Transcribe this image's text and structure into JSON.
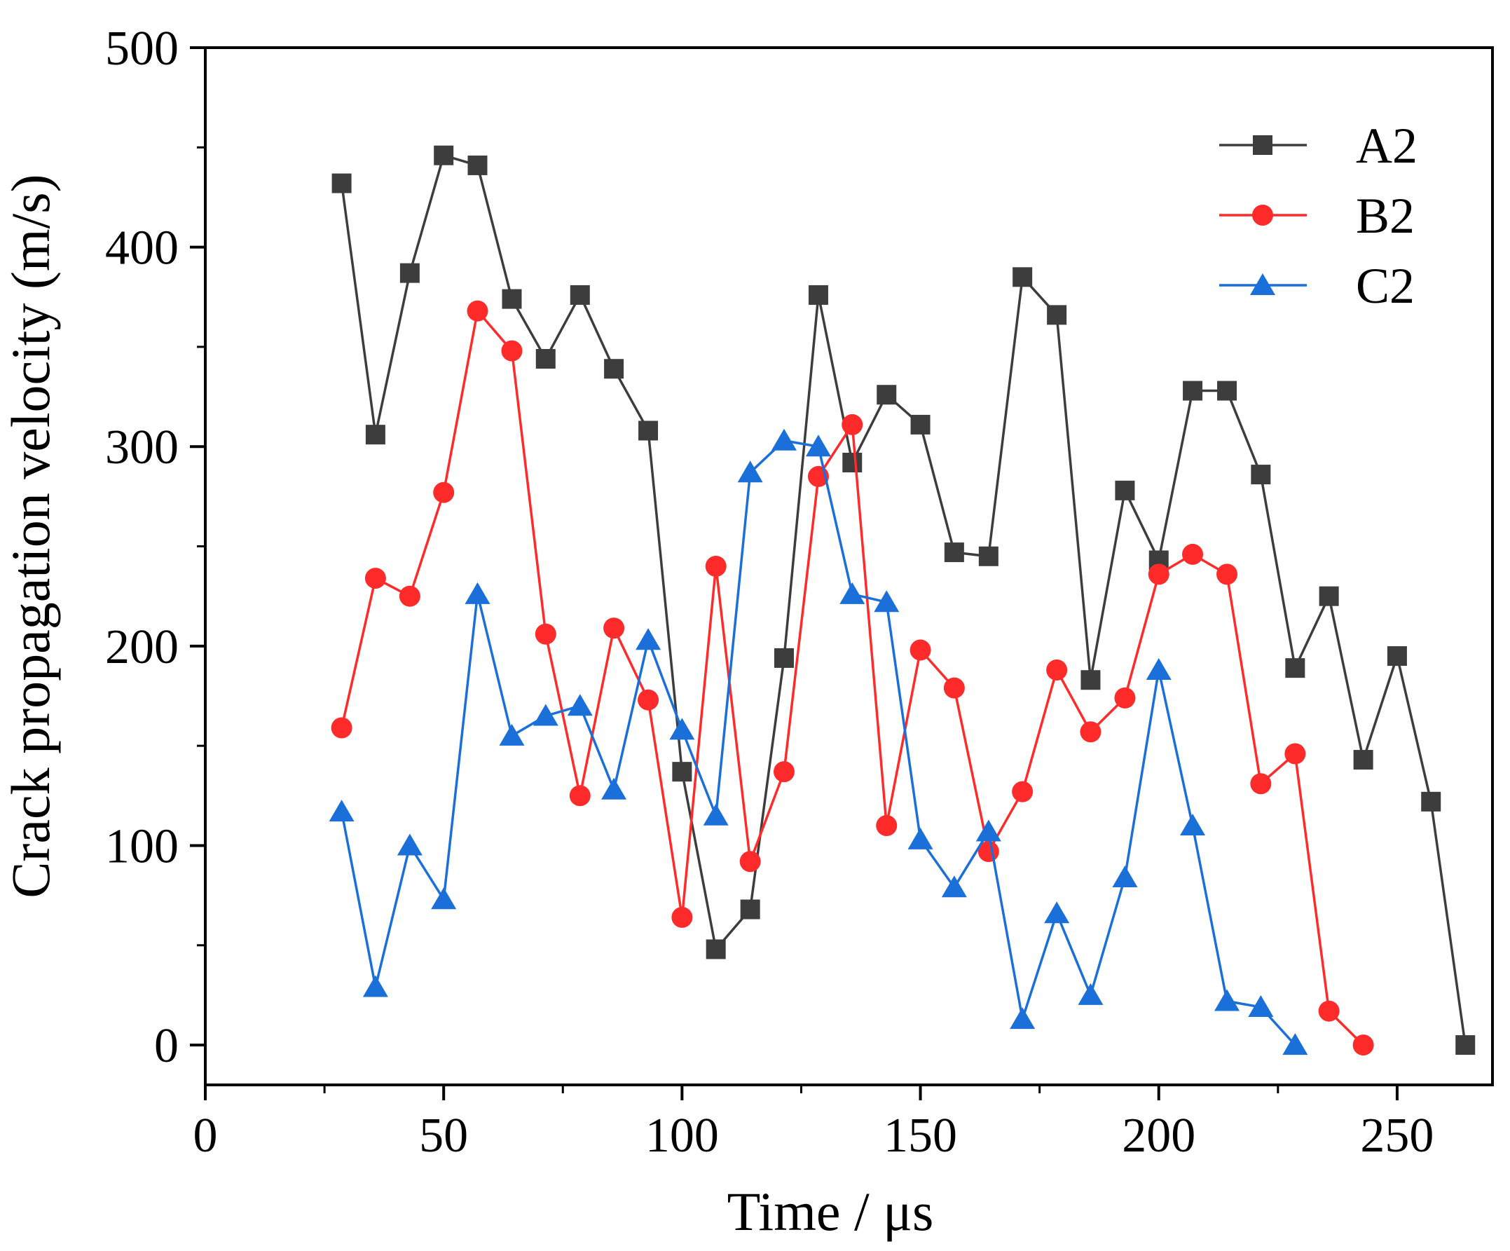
{
  "chart_data": {
    "type": "line",
    "xlabel": "Time / μs",
    "ylabel": "Crack propagation velocity (m/s)",
    "xlim": [
      0,
      270
    ],
    "ylim": [
      -20,
      500
    ],
    "xticks": [
      0,
      50,
      100,
      150,
      200,
      250
    ],
    "yticks": [
      0,
      100,
      200,
      300,
      400,
      500
    ],
    "x_minor_ticks": [
      25,
      75,
      125,
      175,
      225
    ],
    "grid": false,
    "legend_position": "top-right",
    "series": [
      {
        "name": "A2",
        "color": "#3d3d3d",
        "marker": "square",
        "x": [
          28.6,
          35.7,
          42.9,
          50.0,
          57.1,
          64.3,
          71.4,
          78.6,
          85.7,
          92.9,
          100.0,
          107.1,
          114.3,
          121.4,
          128.6,
          135.7,
          142.9,
          150.0,
          157.1,
          164.3,
          171.4,
          178.6,
          185.7,
          192.9,
          200.0,
          207.1,
          214.3,
          221.4,
          228.6,
          235.7,
          242.9,
          250.0,
          257.1,
          264.3
        ],
        "y": [
          432,
          306,
          387,
          446,
          441,
          374,
          344,
          376,
          339,
          308,
          137,
          48,
          68,
          194,
          376,
          292,
          326,
          311,
          247,
          245,
          385,
          366,
          183,
          278,
          243,
          328,
          328,
          286,
          189,
          225,
          143,
          195,
          122,
          0
        ]
      },
      {
        "name": "B2",
        "color": "#ff2b2b",
        "marker": "circle",
        "x": [
          28.6,
          35.7,
          42.9,
          50.0,
          57.1,
          64.3,
          71.4,
          78.6,
          85.7,
          92.9,
          100.0,
          107.1,
          114.3,
          121.4,
          128.6,
          135.7,
          142.9,
          150.0,
          157.1,
          164.3,
          171.4,
          178.6,
          185.7,
          192.9,
          200.0,
          207.1,
          214.3,
          221.4,
          228.6,
          235.7,
          242.9
        ],
        "y": [
          159,
          234,
          225,
          277,
          368,
          348,
          206,
          125,
          209,
          173,
          64,
          240,
          92,
          137,
          285,
          311,
          110,
          198,
          179,
          97,
          127,
          188,
          157,
          174,
          236,
          246,
          236,
          131,
          146,
          17,
          0
        ]
      },
      {
        "name": "C2",
        "color": "#1a6fd9",
        "marker": "triangle",
        "x": [
          28.6,
          35.7,
          42.9,
          50.0,
          57.1,
          64.3,
          71.4,
          78.6,
          85.7,
          92.9,
          100.0,
          107.1,
          114.3,
          121.4,
          128.6,
          135.7,
          142.9,
          150.0,
          157.1,
          164.3,
          171.4,
          178.6,
          185.7,
          192.9,
          200.0,
          207.1,
          214.3,
          221.4,
          228.6
        ],
        "y": [
          117,
          29,
          100,
          73,
          226,
          155,
          165,
          170,
          128,
          203,
          158,
          115,
          287,
          303,
          300,
          226,
          222,
          103,
          79,
          107,
          13,
          66,
          25,
          84,
          188,
          110,
          22,
          19,
          0
        ]
      }
    ]
  }
}
